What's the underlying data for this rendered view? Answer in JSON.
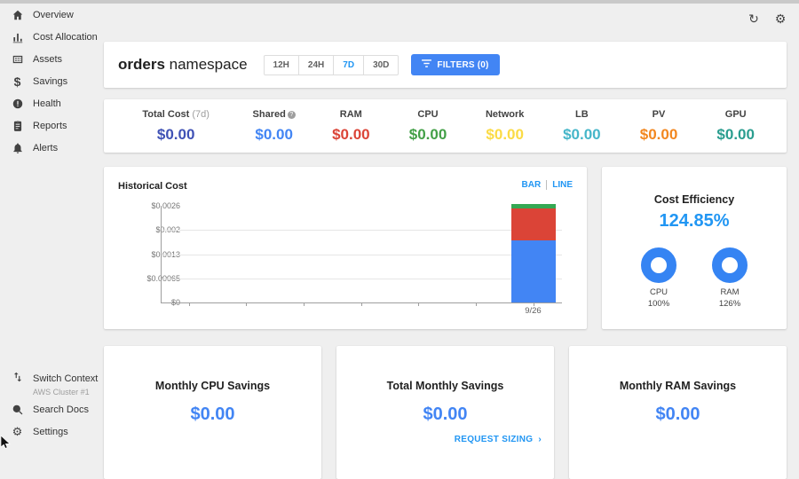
{
  "window": {
    "refresh_icon": "↻",
    "gear_icon": "⚙"
  },
  "sidebar": {
    "items": [
      {
        "label": "Overview",
        "icon": "home"
      },
      {
        "label": "Cost Allocation",
        "icon": "bar-chart"
      },
      {
        "label": "Assets",
        "icon": "assets-grid"
      },
      {
        "label": "Savings",
        "icon": "dollar"
      },
      {
        "label": "Health",
        "icon": "health-alert"
      },
      {
        "label": "Reports",
        "icon": "clipboard"
      },
      {
        "label": "Alerts",
        "icon": "bell"
      }
    ],
    "footer": {
      "switch_label": "Switch Context",
      "switch_sub": "AWS Cluster #1",
      "search_label": "Search Docs",
      "settings_label": "Settings"
    }
  },
  "header": {
    "title_bold": "orders",
    "title_rest": " namespace",
    "ranges": [
      "12H",
      "24H",
      "7D",
      "30D"
    ],
    "selected_range": "7D",
    "filters_label": "FILTERS (0)"
  },
  "stats": [
    {
      "label": "Total Cost",
      "suffix": "(7d)",
      "value": "$0.00",
      "color": "#3f51b5"
    },
    {
      "label": "Shared",
      "suffix": "",
      "value": "$0.00",
      "color": "#4285f4",
      "info": true
    },
    {
      "label": "RAM",
      "suffix": "",
      "value": "$0.00",
      "color": "#db4437"
    },
    {
      "label": "CPU",
      "suffix": "",
      "value": "$0.00",
      "color": "#43a047"
    },
    {
      "label": "Network",
      "suffix": "",
      "value": "$0.00",
      "color": "#fbdb45"
    },
    {
      "label": "LB",
      "suffix": "",
      "value": "$0.00",
      "color": "#45b6c9"
    },
    {
      "label": "PV",
      "suffix": "",
      "value": "$0.00",
      "color": "#f2871f"
    },
    {
      "label": "GPU",
      "suffix": "",
      "value": "$0.00",
      "color": "#2a9d8f"
    }
  ],
  "chart_data": {
    "type": "bar",
    "title": "Historical Cost",
    "toggle": [
      "BAR",
      "LINE"
    ],
    "selected_toggle": "BAR",
    "categories": [
      "9/26"
    ],
    "x_tick_count": 7,
    "series": [
      {
        "name": "cpu",
        "color": "#4285f4",
        "values": [
          0.00165
        ]
      },
      {
        "name": "ram",
        "color": "#db4437",
        "values": [
          0.00086
        ]
      },
      {
        "name": "gpu",
        "color": "#34a853",
        "values": [
          0.00012
        ]
      }
    ],
    "ylim": [
      0,
      0.0026
    ],
    "yticks": [
      "$0.0026",
      "$0.002",
      "$0.0013",
      "$0.00065",
      "$0"
    ],
    "xlabel": "",
    "ylabel": "",
    "grid": "horizontal",
    "legend": "none"
  },
  "efficiency": {
    "title": "Cost Efficiency",
    "value": "124.85%",
    "donuts": [
      {
        "label": "CPU",
        "pct": "100%"
      },
      {
        "label": "RAM",
        "pct": "126%"
      }
    ]
  },
  "savings_cards": [
    {
      "title": "Monthly CPU Savings",
      "value": "$0.00"
    },
    {
      "title": "Total Monthly Savings",
      "value": "$0.00",
      "link": "REQUEST SIZING",
      "chev": "›"
    },
    {
      "title": "Monthly RAM Savings",
      "value": "$0.00"
    }
  ]
}
